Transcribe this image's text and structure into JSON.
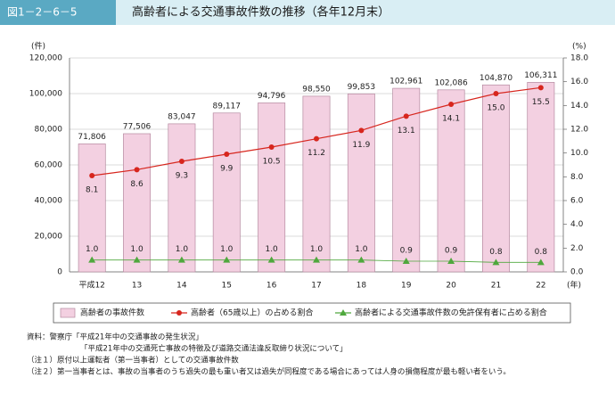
{
  "header": {
    "figure_number": "図1－2－6－5",
    "title": "高齢者による交通事故件数の推移（各年12月末）"
  },
  "chart_data": {
    "type": "bar",
    "y_unit": "(件)",
    "y2_unit": "(%)",
    "x_unit": "(年)",
    "categories": [
      "平成12",
      "13",
      "14",
      "15",
      "16",
      "17",
      "18",
      "19",
      "20",
      "21",
      "22"
    ],
    "series": [
      {
        "name": "高齢者の事故件数",
        "type": "bar",
        "color": "#f3d0e1",
        "values": [
          71806,
          77506,
          83047,
          89117,
          94796,
          98550,
          99853,
          102961,
          102086,
          104870,
          106311
        ],
        "value_labels": [
          "71,806",
          "77,506",
          "83,047",
          "89,117",
          "94,796",
          "98,550",
          "99,853",
          "102,961",
          "102,086",
          "104,870",
          "106,311"
        ]
      },
      {
        "name": "高齢者（65歳以上）の占める割合",
        "type": "line",
        "axis": "y2",
        "color": "#d7261e",
        "values": [
          8.1,
          8.6,
          9.3,
          9.9,
          10.5,
          11.2,
          11.9,
          13.1,
          14.1,
          15.0,
          15.5
        ],
        "value_labels": [
          "8.1",
          "8.6",
          "9.3",
          "9.9",
          "10.5",
          "11.2",
          "11.9",
          "13.1",
          "14.1",
          "15.0",
          "15.5"
        ]
      },
      {
        "name": "高齢者による交通事故件数の免許保有者に占める割合",
        "type": "line",
        "axis": "y2",
        "color": "#4fa83d",
        "values": [
          1.0,
          1.0,
          1.0,
          1.0,
          1.0,
          1.0,
          1.0,
          0.9,
          0.9,
          0.8,
          0.8
        ],
        "value_labels": [
          "1.0",
          "1.0",
          "1.0",
          "1.0",
          "1.0",
          "1.0",
          "1.0",
          "0.9",
          "0.9",
          "0.8",
          "0.8"
        ]
      }
    ],
    "ylim": [
      0,
      120000
    ],
    "yticks": [
      0,
      {
        "value": 20000,
        "label": "20,000"
      },
      {
        "value": 40000,
        "label": "40,000"
      },
      {
        "value": 60000,
        "label": "60,000"
      },
      {
        "value": 80000,
        "label": "80,000"
      },
      {
        "value": 100000,
        "label": "100,000"
      },
      {
        "value": 120000,
        "label": "120,000"
      }
    ],
    "y2lim": [
      0,
      18
    ],
    "y2ticks": [
      {
        "value": 0,
        "label": "0.0"
      },
      {
        "value": 2,
        "label": "2.0"
      },
      {
        "value": 4,
        "label": "4.0"
      },
      {
        "value": 6,
        "label": "6.0"
      },
      {
        "value": 8,
        "label": "8.0"
      },
      {
        "value": 10,
        "label": "10.0"
      },
      {
        "value": 12,
        "label": "12.0"
      },
      {
        "value": 14,
        "label": "14.0"
      },
      {
        "value": 16,
        "label": "16.0"
      },
      {
        "value": 18,
        "label": "18.0"
      }
    ],
    "grid": true
  },
  "notes": [
    "資料：警察庁「平成21年中の交通事故の発生状況」",
    "「平成21年中の交通死亡事故の特徴及び道路交通法違反取締り状況について」",
    "（注１）原付以上運転者（第一当事者）としての交通事故件数",
    "（注２）第一当事者とは、事故の当事者のうち過失の最も重い者又は過失が同程度である場合にあっては人身の損傷程度が最も軽い者をいう。"
  ]
}
